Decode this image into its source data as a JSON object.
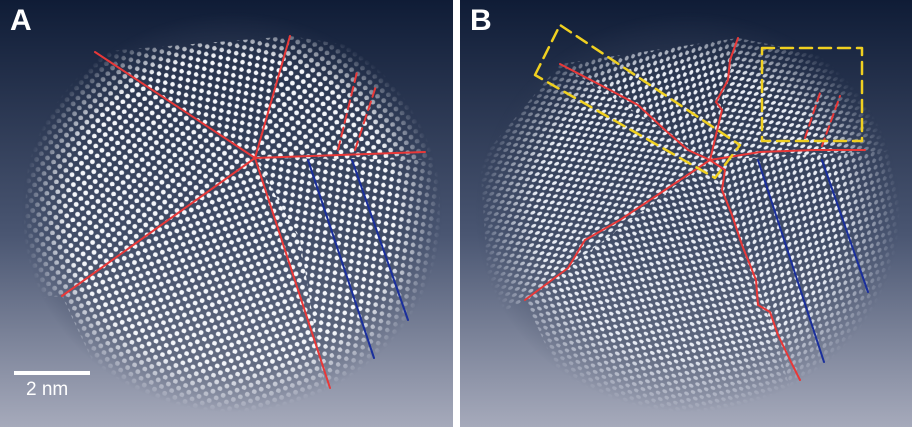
{
  "panels": [
    {
      "label": "A"
    },
    {
      "label": "B"
    }
  ],
  "scale_bar": {
    "label": "2 nm"
  },
  "colors": {
    "background_top": "#0f1c36",
    "background_bottom": "#a6aabb",
    "grain_boundary": "#e83838",
    "twin_boundary": "#1a2f9c",
    "highlight_box": "#f0d020"
  }
}
